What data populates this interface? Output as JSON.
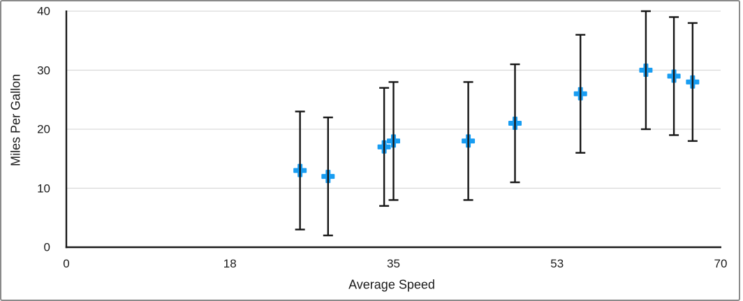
{
  "chart_data": {
    "type": "scatter",
    "xlabel": "Average Speed",
    "ylabel": "Miles Per Gallon",
    "xlim": [
      0,
      70
    ],
    "ylim": [
      0,
      40
    ],
    "x_ticks": {
      "values": [
        0,
        17.5,
        35,
        52.5,
        70
      ],
      "labels": [
        "0",
        "18",
        "35",
        "53",
        "70"
      ]
    },
    "y_ticks": {
      "values": [
        0,
        10,
        20,
        30,
        40
      ],
      "labels": [
        "0",
        "10",
        "20",
        "30",
        "40"
      ]
    },
    "grid": "horizontal gridlines at y = 10, 20, 30, 40",
    "legend": "none",
    "points": [
      {
        "x": 25,
        "y": 13
      },
      {
        "x": 28,
        "y": 12
      },
      {
        "x": 34,
        "y": 17
      },
      {
        "x": 35,
        "y": 18
      },
      {
        "x": 43,
        "y": 18
      },
      {
        "x": 48,
        "y": 21
      },
      {
        "x": 55,
        "y": 26
      },
      {
        "x": 62,
        "y": 30
      },
      {
        "x": 65,
        "y": 29
      },
      {
        "x": 67,
        "y": 28
      }
    ],
    "error_y": 10,
    "style": {
      "marker_shape": "plus",
      "marker_color": "#189df2",
      "marker_size": 19,
      "marker_arm_thickness": 7,
      "error_bar_color": "#151515",
      "error_bar_width": 2.4,
      "error_bar_cap_width": 14,
      "axis_color": "#1a1a1a",
      "gridline_color": "#d9d9d9",
      "text_color": "#1a1a1a",
      "frame_border_color": "#8a8a8a",
      "background": "#ffffff"
    }
  }
}
